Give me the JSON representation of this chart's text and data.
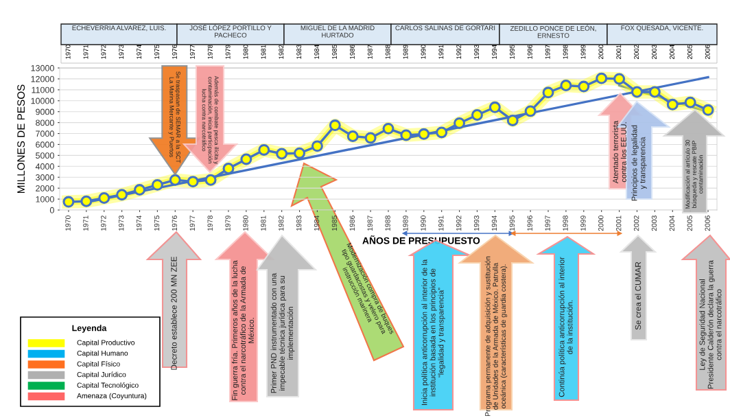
{
  "chart_data": {
    "type": "line",
    "ylabel": "MILLONES DE PESOS",
    "xlabel": "AÑOS DE PRESUPUESTO",
    "legend_title": "Leyenda",
    "x": [
      1970,
      1971,
      1972,
      1973,
      1974,
      1975,
      1976,
      1977,
      1978,
      1979,
      1980,
      1981,
      1982,
      1983,
      1984,
      1985,
      1986,
      1987,
      1988,
      1989,
      1990,
      1991,
      1992,
      1993,
      1994,
      1995,
      1996,
      1997,
      1998,
      1999,
      2000,
      2001,
      2002,
      2003,
      2004,
      2005,
      2006
    ],
    "series": [
      {
        "color": "#4472c4",
        "marker": "circle",
        "values": [
          750,
          800,
          1100,
          1400,
          1850,
          2300,
          2750,
          2600,
          2750,
          3800,
          4650,
          5500,
          5150,
          5200,
          5850,
          7750,
          6750,
          6600,
          7450,
          6850,
          6950,
          7100,
          7950,
          8700,
          9400,
          8200,
          9050,
          10750,
          11400,
          11300,
          12050,
          12000,
          10800,
          10800,
          9650,
          9850,
          9150
        ]
      },
      {
        "type": "line",
        "color": "#4472c4",
        "x": [
          1971,
          2006
        ],
        "values": [
          700,
          12150
        ]
      },
      {
        "type": "line",
        "color": "#4472c4",
        "x": [
          2001,
          2006
        ],
        "values": [
          11400,
          9000
        ]
      }
    ],
    "ylim": [
      0,
      13000
    ],
    "yticks": [
      0,
      1000,
      2000,
      3000,
      4000,
      5000,
      6000,
      7000,
      8000,
      9000,
      10000,
      11000,
      12000,
      13000
    ],
    "xlim": [
      1969.5,
      2006.5
    ],
    "xticks": [
      1970,
      1971,
      1972,
      1973,
      1974,
      1975,
      1976,
      1977,
      1978,
      1979,
      1980,
      1981,
      1982,
      1983,
      1984,
      1985,
      1986,
      1987,
      1988,
      1989,
      1990,
      1991,
      1992,
      1993,
      1994,
      1995,
      1996,
      1997,
      1998,
      1999,
      2000,
      2001,
      2002,
      2003,
      2004,
      2005,
      2006
    ],
    "x2lim": [
      1969.5,
      2006.5
    ],
    "x2ticks": [
      1970,
      1971,
      1972,
      1973,
      1974,
      1975,
      1976,
      1977,
      1978,
      1979,
      1980,
      1981,
      1982,
      1983,
      1984,
      1985,
      1986,
      1987,
      1988,
      1989,
      1990,
      1991,
      1992,
      1993,
      1994,
      1995,
      1996,
      1997,
      1998,
      1999,
      2000,
      2001,
      2002,
      2003,
      2004,
      2005,
      2006
    ],
    "grid": "y",
    "annotations": [
      {
        "text": "Se traspasan de SEMAR a la SCT\nLa Marina Mercante y Puertos",
        "x": 1976,
        "y": 2750
      },
      "Además de combate pesca ilícita y\ncontaminación, inicia participación\nlucha contra narcotráfico",
      "Modernización compra de buques\ntipo guardacostas y velero para\ninstrucción marinera",
      "Atentado terrorista\ncontra los EE.UU.",
      "Principios de legalidad\ny transparencia",
      "Modificación al artículo 30\nbúsqueda y rescate PBIP\ncontaminación",
      "Decreto establece 200 MN ZEE",
      "Fin guerra fría. Primeros años de la lucha\ncontra el narcotráfico de la Armada de\nMéxico.",
      "Primer PND instrumentado con una\nimpecable técnica jurídica para su\nimplementación",
      "Inicia política anticorrupción al interior de la\ninstitución basada en los principios de\n“legalidad y transparencia”",
      "Programa permanente de adquisición y sustitución\nde Unidades de la Armada de México. Patrulla\noceánica (características de guardia costera).",
      "Continúa política anticorrupción al interior\nde la institución.",
      "Se crea el CUMAR",
      "Ley de Seguridad Nacional\nPresidente Calderón declara la guerra\ncontra el narcotráfico",
      "ECHEVERRIA ALVAREZ, LUIS.",
      "JOSÉ LÓPEZ PORTILLO Y\nPACHECO",
      "MIGUEL DE LA MADRID\nHURTADO",
      "CARLOS SALINAS DE GORTARI",
      "ZEDILLO PONCE DE LEÓN,\nERNESTO",
      "FOX QUESADA, VICENTE.",
      "Capital Productivo",
      "Capital Humano",
      "Capital Físico",
      "Capital Jurídico",
      "Capital Tecnológico",
      "Amenaza (Coyuntura)"
    ]
  }
}
